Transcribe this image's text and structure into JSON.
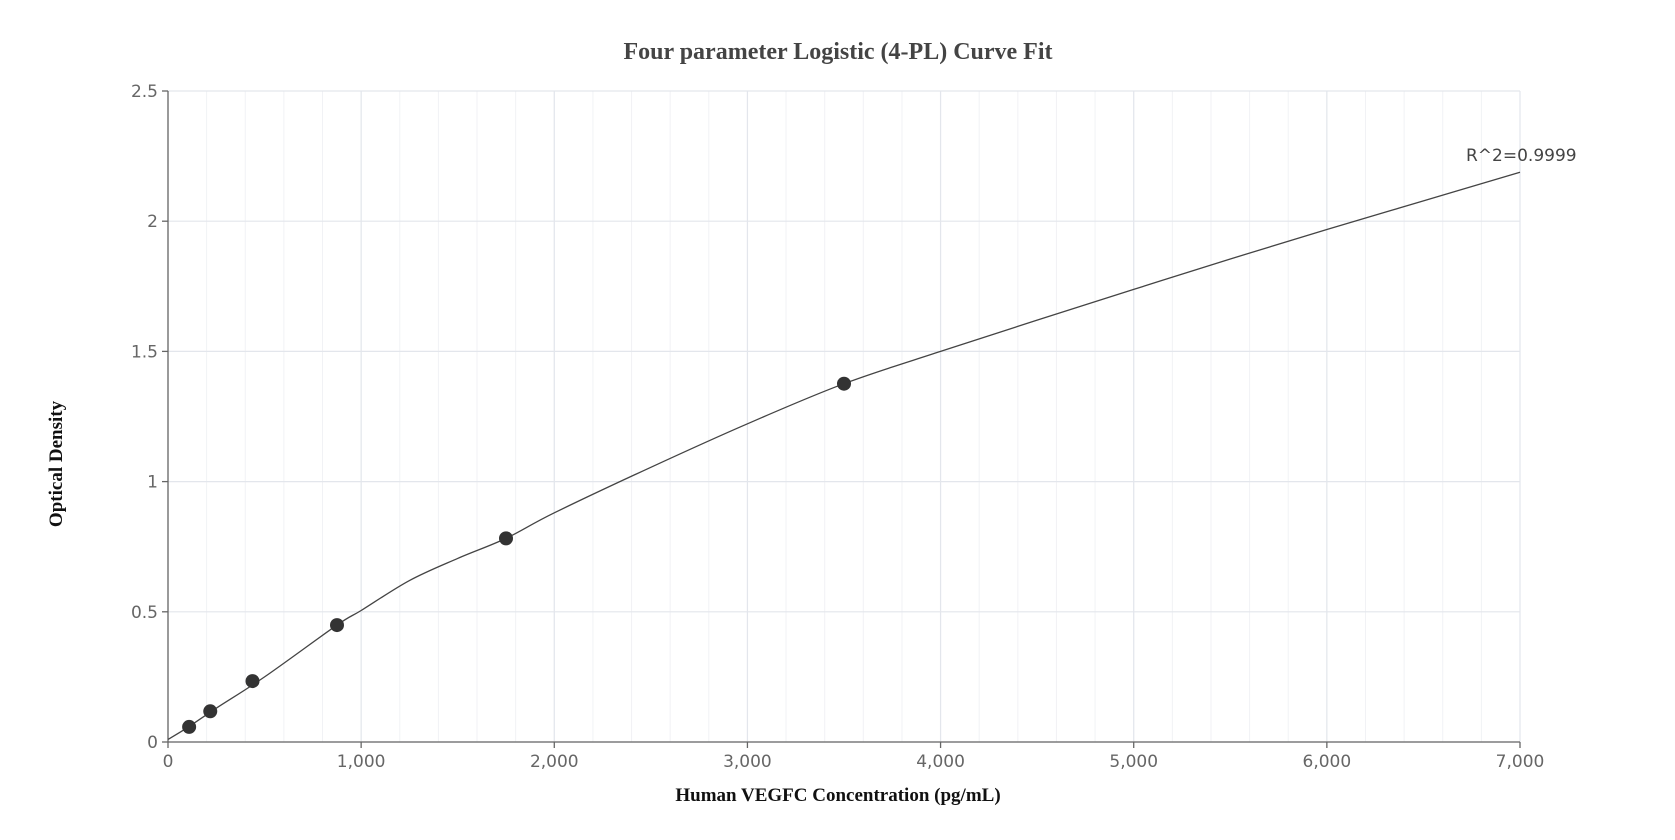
{
  "chart_data": {
    "type": "scatter",
    "title": "Four parameter Logistic (4-PL) Curve Fit",
    "xlabel": "Human VEGFC Concentration (pg/mL)",
    "ylabel": "Optical Density",
    "xlim": [
      0,
      7000
    ],
    "ylim": [
      0,
      2.5
    ],
    "x_ticks": [
      0,
      1000,
      2000,
      3000,
      4000,
      5000,
      6000,
      7000
    ],
    "x_tick_labels": [
      "0",
      "1,000",
      "2,000",
      "3,000",
      "4,000",
      "5,000",
      "6,000",
      "7,000"
    ],
    "y_ticks": [
      0,
      0.5,
      1,
      1.5,
      2,
      2.5
    ],
    "y_tick_labels": [
      "0",
      "0.5",
      "1",
      "1.5",
      "2",
      "2.5"
    ],
    "grid": true,
    "annotation": "R^2=0.9999",
    "points": [
      {
        "x": 109.375,
        "y": 0.058
      },
      {
        "x": 218.75,
        "y": 0.118
      },
      {
        "x": 437.5,
        "y": 0.234
      },
      {
        "x": 875,
        "y": 0.449
      },
      {
        "x": 1750,
        "y": 0.782
      },
      {
        "x": 3500,
        "y": 1.376
      }
    ],
    "fit_curve": {
      "model": "4-PL",
      "x": [
        0,
        100,
        250,
        500,
        875,
        1000,
        1250,
        1500,
        1750,
        2000,
        2500,
        3000,
        3500,
        4000,
        4500,
        5000,
        5500,
        6000,
        6500,
        7000
      ],
      "y": [
        0.01,
        0.055,
        0.13,
        0.25,
        0.449,
        0.505,
        0.62,
        0.705,
        0.782,
        0.88,
        1.055,
        1.222,
        1.376,
        1.5,
        1.62,
        1.738,
        1.855,
        1.968,
        2.078,
        2.188
      ]
    },
    "colors": {
      "points": "#333333",
      "curve": "#444444",
      "grid": "#e3e6ec"
    }
  }
}
